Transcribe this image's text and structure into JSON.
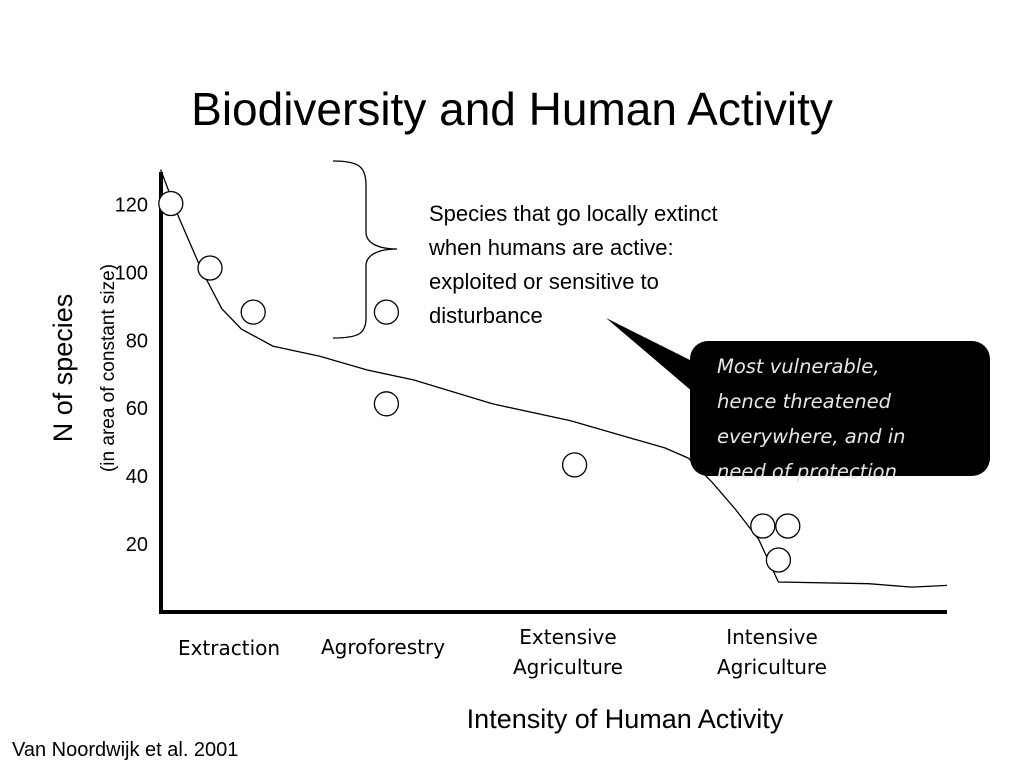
{
  "chart_data": {
    "type": "scatter",
    "title": "Biodiversity and Human Activity",
    "ylabel": "N of species",
    "ylabel_sub": "(in area of constant size)",
    "xlabel": "Intensity of Human Activity",
    "ylim": [
      0,
      130
    ],
    "yticks": [
      "120",
      "100",
      "80",
      "60",
      "40",
      "20"
    ],
    "ytick_values": [
      120,
      100,
      80,
      60,
      40,
      20
    ],
    "x_categories": [
      {
        "lines": [
          "Extraction"
        ]
      },
      {
        "lines": [
          "Agroforestry"
        ]
      },
      {
        "lines": [
          "Extensive",
          "Agriculture"
        ]
      },
      {
        "lines": [
          "Intensive",
          "Agriculture"
        ]
      }
    ],
    "points": [
      {
        "x": 0.01,
        "y": 120
      },
      {
        "x": 0.06,
        "y": 101
      },
      {
        "x": 0.115,
        "y": 88
      },
      {
        "x": 0.285,
        "y": 88
      },
      {
        "x": 0.285,
        "y": 61
      },
      {
        "x": 0.525,
        "y": 43
      },
      {
        "x": 0.765,
        "y": 25
      },
      {
        "x": 0.797,
        "y": 25
      },
      {
        "x": 0.785,
        "y": 15
      }
    ],
    "trend_line": [
      {
        "x": -0.003,
        "y": 130
      },
      {
        "x": 0.02,
        "y": 116
      },
      {
        "x": 0.05,
        "y": 100
      },
      {
        "x": 0.075,
        "y": 89
      },
      {
        "x": 0.1,
        "y": 83
      },
      {
        "x": 0.14,
        "y": 78
      },
      {
        "x": 0.2,
        "y": 75
      },
      {
        "x": 0.26,
        "y": 71
      },
      {
        "x": 0.32,
        "y": 68
      },
      {
        "x": 0.42,
        "y": 61
      },
      {
        "x": 0.52,
        "y": 56
      },
      {
        "x": 0.58,
        "y": 52
      },
      {
        "x": 0.64,
        "y": 48
      },
      {
        "x": 0.67,
        "y": 45
      },
      {
        "x": 0.7,
        "y": 38
      },
      {
        "x": 0.73,
        "y": 30
      },
      {
        "x": 0.76,
        "y": 21
      },
      {
        "x": 0.785,
        "y": 8.5
      },
      {
        "x": 0.9,
        "y": 8
      },
      {
        "x": 0.955,
        "y": 7
      },
      {
        "x": 1.0,
        "y": 7.5
      }
    ],
    "annotation_extinct": [
      "Species that go locally extinct",
      "when humans are active:",
      "exploited or sensitive to",
      "disturbance"
    ],
    "annotation_vulnerable": [
      "Most vulnerable,",
      "hence threatened",
      "everywhere, and in",
      "need of protection"
    ],
    "source": "Van Noordwijk et al. 2001"
  }
}
